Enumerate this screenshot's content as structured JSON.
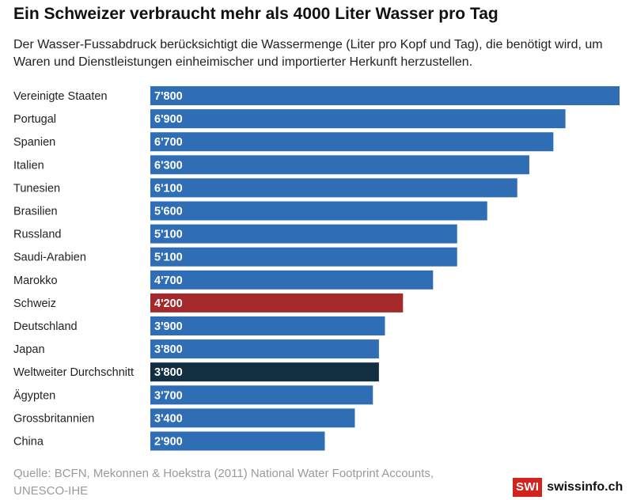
{
  "chart_data": {
    "type": "bar",
    "orientation": "horizontal",
    "title": "Ein Schweizer verbraucht mehr als 4000 Liter Wasser pro Tag",
    "subtitle": "Der Wasser-Fussabdruck berücksichtigt die Wassermenge (Liter pro Kopf und Tag), die benötigt wird, um Waren und Dienstleistungen einheimischer und importierter Herkunft herzustellen.",
    "categories": [
      "Vereinigte Staaten",
      "Portugal",
      "Spanien",
      "Italien",
      "Tunesien",
      "Brasilien",
      "Russland",
      "Saudi-Arabien",
      "Marokko",
      "Schweiz",
      "Deutschland",
      "Japan",
      "Weltweiter Durchschnitt",
      "Ägypten",
      "Grossbritannien",
      "China"
    ],
    "values": [
      7800,
      6900,
      6700,
      6300,
      6100,
      5600,
      5100,
      5100,
      4700,
      4200,
      3900,
      3800,
      3800,
      3700,
      3400,
      2900
    ],
    "value_labels": [
      "7'800",
      "6'900",
      "6'700",
      "6'300",
      "6'100",
      "5'600",
      "5'100",
      "5'100",
      "4'700",
      "4'200",
      "3'900",
      "3'800",
      "3'800",
      "3'700",
      "3'400",
      "2'900"
    ],
    "bar_colors": [
      "#2f6db5",
      "#2f6db5",
      "#2f6db5",
      "#2f6db5",
      "#2f6db5",
      "#2f6db5",
      "#2f6db5",
      "#2f6db5",
      "#2f6db5",
      "#a3292b",
      "#2f6db5",
      "#2f6db5",
      "#123041",
      "#2f6db5",
      "#2f6db5",
      "#2f6db5"
    ],
    "xlim": [
      0,
      7800
    ],
    "grid": false,
    "legend": "none"
  },
  "source": "Quelle: BCFN, Mekonnen & Hoekstra (2011) National Water Footprint Accounts, UNESCO-IHE",
  "logo": {
    "box": "SWI",
    "text": "swissinfo.ch",
    "color": "#d2231e"
  }
}
